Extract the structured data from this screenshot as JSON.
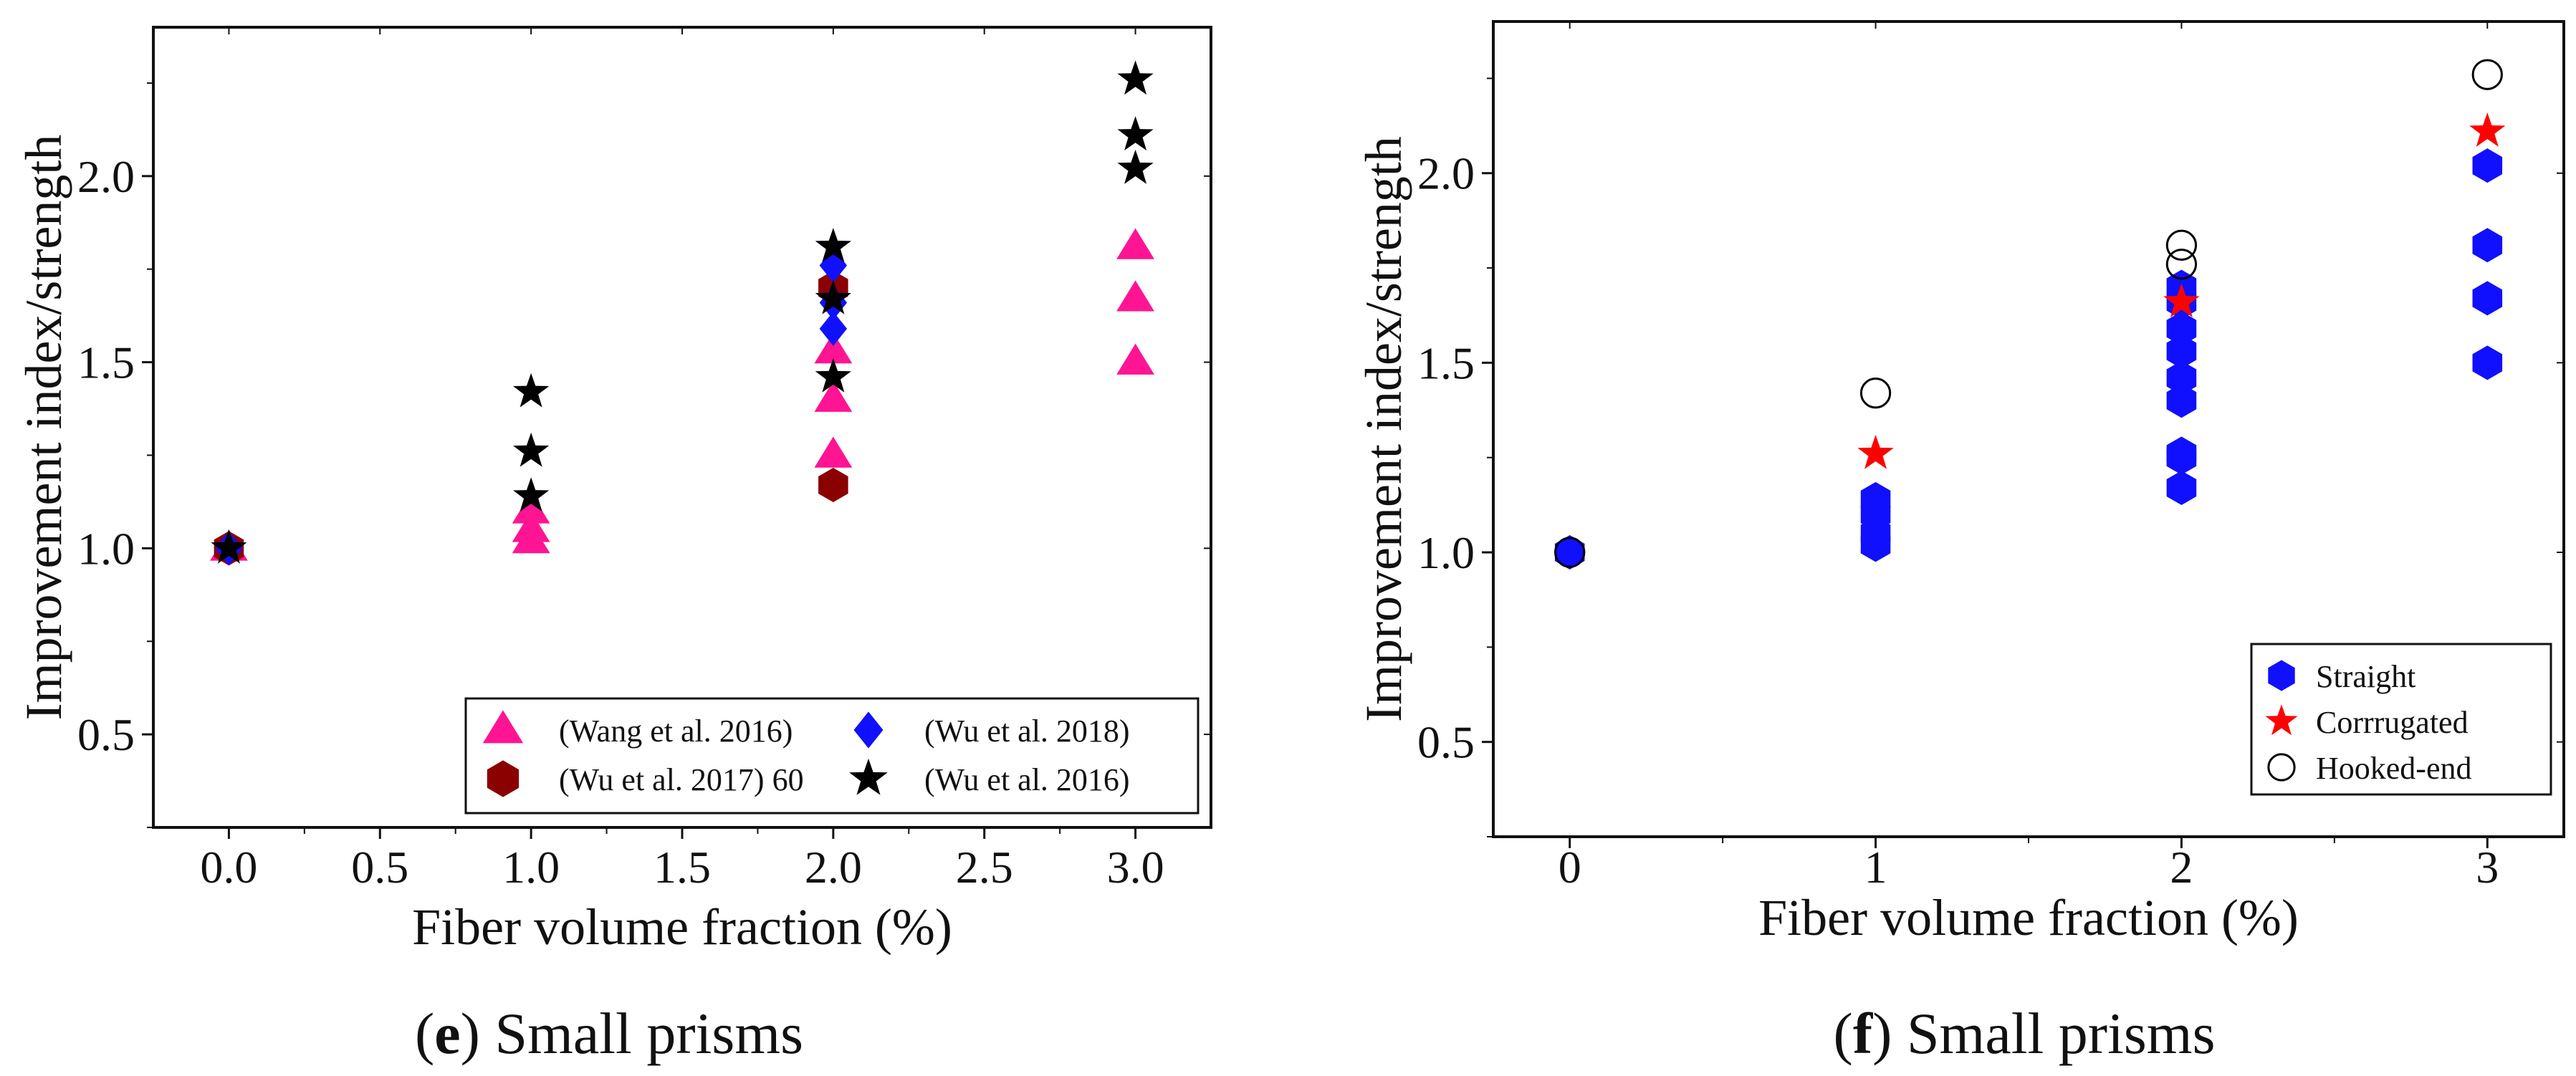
{
  "chart_data": [
    {
      "id": "e",
      "type": "scatter",
      "caption_letter": "e",
      "caption_text": "Small prisms",
      "xlabel": "Fiber volume fraction (%)",
      "ylabel": "Improvement index/strength",
      "xlim": [
        -0.25,
        3.25
      ],
      "ylim": [
        0.25,
        2.4
      ],
      "xticks": [
        0.0,
        0.5,
        1.0,
        1.5,
        2.0,
        2.5,
        3.0
      ],
      "xtick_labels": [
        "0.0",
        "0.5",
        "1.0",
        "1.5",
        "2.0",
        "2.5",
        "3.0"
      ],
      "yticks": [
        0.5,
        1.0,
        1.5,
        2.0
      ],
      "ytick_labels": [
        "0.5",
        "1.0",
        "1.5",
        "2.0"
      ],
      "legend_position": "bottom-right",
      "legend_columns": 2,
      "series": [
        {
          "name": "(Wang et al. 2016)",
          "marker": "triangle",
          "color": "#ff1493",
          "points": [
            [
              0,
              1.0
            ],
            [
              1,
              1.02
            ],
            [
              1,
              1.05
            ],
            [
              1,
              1.1
            ],
            [
              2,
              1.25
            ],
            [
              2,
              1.4
            ],
            [
              2,
              1.53
            ],
            [
              3,
              1.5
            ],
            [
              3,
              1.67
            ],
            [
              3,
              1.81
            ]
          ]
        },
        {
          "name": "(Wu et al. 2017) 60",
          "marker": "hexagon",
          "color": "#8b0000",
          "points": [
            [
              0,
              1.0
            ],
            [
              2,
              1.17
            ],
            [
              2,
              1.7
            ]
          ]
        },
        {
          "name": "(Wu et al. 2018)",
          "marker": "diamond",
          "color": "#1010ff",
          "points": [
            [
              0,
              1.0
            ],
            [
              2,
              1.59
            ],
            [
              2,
              1.66
            ],
            [
              2,
              1.76
            ]
          ]
        },
        {
          "name": "(Wu et al. 2016)",
          "marker": "star",
          "color": "#000000",
          "points": [
            [
              0,
              1.0
            ],
            [
              1,
              1.14
            ],
            [
              1,
              1.26
            ],
            [
              1,
              1.42
            ],
            [
              2,
              1.46
            ],
            [
              2,
              1.67
            ],
            [
              2,
              1.81
            ],
            [
              3,
              2.02
            ],
            [
              3,
              2.11
            ],
            [
              3,
              2.26
            ]
          ]
        }
      ]
    },
    {
      "id": "f",
      "type": "scatter",
      "caption_letter": "f",
      "caption_text": "Small prisms",
      "xlabel": "Fiber volume fraction (%)",
      "ylabel": "Improvement index/strength",
      "xlim": [
        -0.25,
        3.25
      ],
      "ylim": [
        0.25,
        2.4
      ],
      "xticks": [
        0,
        1,
        2,
        3
      ],
      "xtick_labels": [
        "0",
        "1",
        "2",
        "3"
      ],
      "yticks": [
        0.5,
        1.0,
        1.5,
        2.0
      ],
      "ytick_labels": [
        "0.5",
        "1.0",
        "1.5",
        "2.0"
      ],
      "legend_position": "bottom-right",
      "legend_columns": 1,
      "series": [
        {
          "name": "Straight",
          "marker": "hexagon",
          "color": "#1010ff",
          "points": [
            [
              0,
              1.0
            ],
            [
              1,
              1.02
            ],
            [
              1,
              1.05
            ],
            [
              1,
              1.1
            ],
            [
              1,
              1.14
            ],
            [
              2,
              1.17
            ],
            [
              2,
              1.25
            ],
            [
              2,
              1.26
            ],
            [
              2,
              1.4
            ],
            [
              2,
              1.46
            ],
            [
              2,
              1.53
            ],
            [
              2,
              1.59
            ],
            [
              2,
              1.66
            ],
            [
              2,
              1.7
            ],
            [
              3,
              1.5
            ],
            [
              3,
              1.67
            ],
            [
              3,
              1.81
            ],
            [
              3,
              2.02
            ]
          ]
        },
        {
          "name": "Corrrugated",
          "marker": "star",
          "color": "#ff0000",
          "points": [
            [
              1,
              1.26
            ],
            [
              2,
              1.66
            ],
            [
              3,
              2.11
            ]
          ]
        },
        {
          "name": "Hooked-end",
          "marker": "circle-open",
          "color": "#000000",
          "points": [
            [
              0,
              1.0
            ],
            [
              1,
              1.42
            ],
            [
              2,
              1.76
            ],
            [
              2,
              1.81
            ],
            [
              3,
              2.26
            ]
          ]
        }
      ]
    }
  ]
}
